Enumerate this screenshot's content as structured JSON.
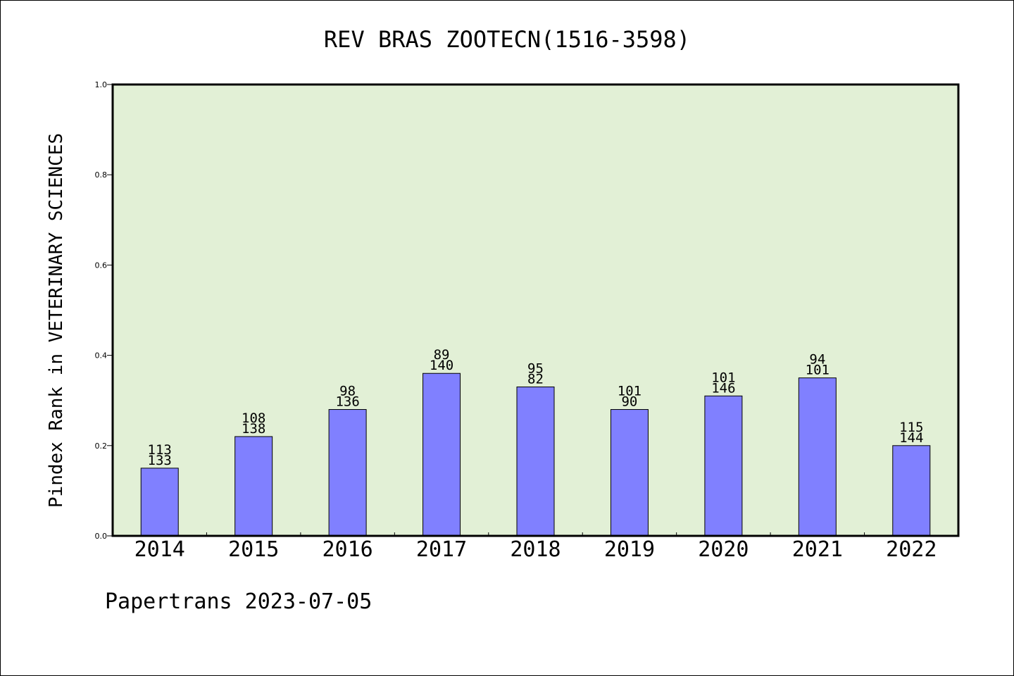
{
  "chart_data": {
    "type": "bar",
    "title": "REV BRAS ZOOTECN(1516-3598)",
    "xlabel": "",
    "ylabel": "Pindex Rank in VETERINARY SCIENCES",
    "ylim": [
      0,
      1.0
    ],
    "yticks": [
      "0.0",
      "0.2",
      "0.4",
      "0.6",
      "0.8",
      "1.0"
    ],
    "categories": [
      "2014",
      "2015",
      "2016",
      "2017",
      "2018",
      "2019",
      "2020",
      "2021",
      "2022"
    ],
    "values": [
      0.15,
      0.22,
      0.28,
      0.36,
      0.33,
      0.28,
      0.31,
      0.35,
      0.2
    ],
    "labels_top": [
      "113",
      "108",
      "98",
      "89",
      "95",
      "101",
      "101",
      "94",
      "115"
    ],
    "labels_bottom": [
      "133",
      "138",
      "136",
      "140",
      "82",
      "90",
      "146",
      "101",
      "144"
    ],
    "grid": false,
    "colors": {
      "plot_background": "#e2f0d6",
      "bar_fill": "#8080ff",
      "bar_stroke": "#000000"
    }
  },
  "footer": "Papertrans 2023-07-05"
}
